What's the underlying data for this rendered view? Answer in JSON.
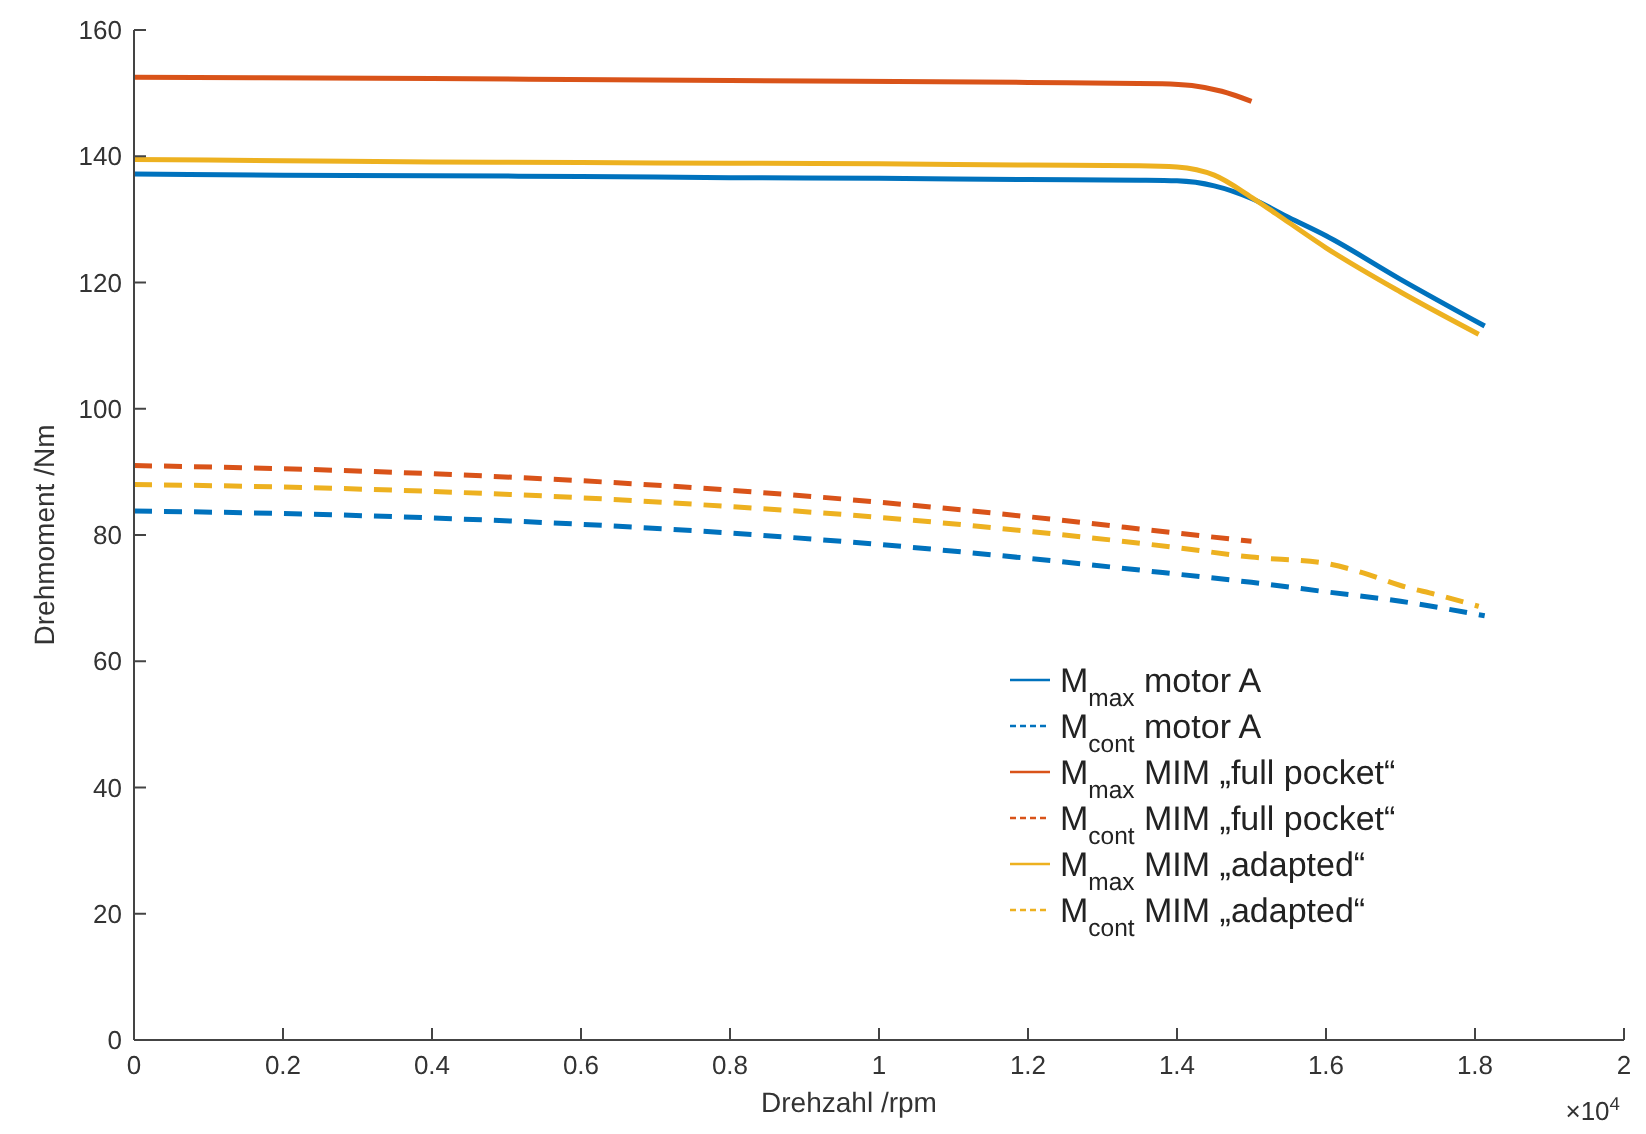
{
  "chart_data": {
    "type": "line",
    "xlabel": "Drehzahl /rpm",
    "ylabel": "Drehmoment /Nm",
    "xlim": [
      0,
      2
    ],
    "xticks": [
      0,
      0.2,
      0.4,
      0.6,
      0.8,
      1,
      1.2,
      1.4,
      1.6,
      1.8,
      2
    ],
    "ylim": [
      0,
      160
    ],
    "yticks": [
      0,
      20,
      40,
      60,
      80,
      100,
      120,
      140,
      160
    ],
    "annotations": [
      "×10$^{4}$"
    ],
    "grid": false,
    "legend": "bottom right",
    "marker": "none",
    "series": [
      {
        "name": "M$_{max}$  motor A",
        "color": "#0072bd",
        "line_style": "solid",
        "x": [
          0,
          0.2,
          0.4,
          0.6,
          0.8,
          1,
          1.2,
          1.35,
          1.4,
          1.45,
          1.5,
          1.55,
          1.6,
          1.7,
          1.813
        ],
        "values": [
          137.2,
          137,
          136.9,
          136.8,
          136.6,
          136.5,
          136.3,
          136.2,
          136.1,
          135.3,
          133.3,
          130.3,
          127.4,
          120.5,
          113.1
        ]
      },
      {
        "name": "M$_{cont}$  motor A",
        "color": "#0072bd",
        "line_style": "dashed",
        "x": [
          0,
          0.2,
          0.4,
          0.6,
          0.8,
          1,
          1.2,
          1.4,
          1.5,
          1.6,
          1.7,
          1.813
        ],
        "values": [
          83.8,
          83.4,
          82.7,
          81.7,
          80.3,
          78.5,
          76.3,
          73.8,
          72.5,
          71,
          69.5,
          67.2
        ]
      },
      {
        "name": "M$_{max}$  MIM „full pocket“",
        "color": "#d95319",
        "line_style": "solid",
        "x": [
          0,
          0.4,
          0.8,
          1.2,
          1.38,
          1.42,
          1.46,
          1.5
        ],
        "values": [
          152.5,
          152.3,
          152,
          151.7,
          151.5,
          151.2,
          150.3,
          148.7
        ]
      },
      {
        "name": "M$_{cont}$  MIM „full pocket“",
        "color": "#d95319",
        "line_style": "dashed",
        "x": [
          0,
          0.2,
          0.4,
          0.6,
          0.8,
          1,
          1.2,
          1.4,
          1.5
        ],
        "values": [
          91,
          90.5,
          89.7,
          88.6,
          87.1,
          85.2,
          82.9,
          80.3,
          79
        ]
      },
      {
        "name": "M$_{max}$  MIM „adapted“",
        "color": "#edb120",
        "line_style": "solid",
        "x": [
          0,
          0.2,
          0.4,
          0.6,
          0.8,
          1,
          1.2,
          1.35,
          1.4,
          1.45,
          1.5,
          1.55,
          1.6,
          1.7,
          1.805
        ],
        "values": [
          139.5,
          139.3,
          139.1,
          139,
          138.9,
          138.8,
          138.6,
          138.5,
          138.3,
          137,
          133.5,
          129.5,
          125.5,
          118.5,
          111.8
        ]
      },
      {
        "name": "M$_{cont}$  MIM „adapted“",
        "color": "#edb120",
        "line_style": "dashed",
        "x": [
          0,
          0.2,
          0.4,
          0.6,
          0.8,
          1,
          1.2,
          1.4,
          1.5,
          1.6,
          1.65,
          1.7,
          1.75,
          1.805
        ],
        "values": [
          88,
          87.6,
          86.9,
          85.9,
          84.5,
          82.8,
          80.6,
          78,
          76.5,
          75.5,
          74,
          72,
          70.5,
          68.7
        ]
      }
    ]
  }
}
